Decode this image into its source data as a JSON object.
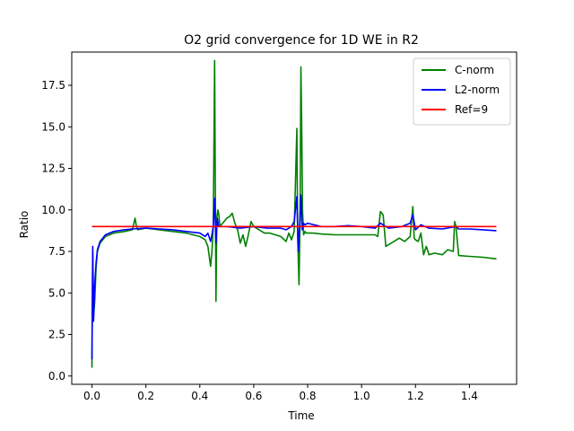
{
  "chart_data": {
    "type": "line",
    "title": "O2 grid convergence for 1D WE in R2",
    "xlabel": "Time",
    "ylabel": "Ratio",
    "xlim": [
      -0.075,
      1.575
    ],
    "ylim": [
      -0.5,
      19.5
    ],
    "xticks": [
      0.0,
      0.2,
      0.4,
      0.6,
      0.8,
      1.0,
      1.2,
      1.4
    ],
    "xtick_labels": [
      "0.0",
      "0.2",
      "0.4",
      "0.6",
      "0.8",
      "1.0",
      "1.2",
      "1.4"
    ],
    "yticks": [
      0.0,
      2.5,
      5.0,
      7.5,
      10.0,
      12.5,
      15.0,
      17.5
    ],
    "ytick_labels": [
      "0.0",
      "2.5",
      "5.0",
      "7.5",
      "10.0",
      "12.5",
      "15.0",
      "17.5"
    ],
    "grid": false,
    "legend_position": "top-right",
    "series": [
      {
        "name": "C-norm",
        "color": "#008000",
        "x": [
          0.0,
          0.003,
          0.006,
          0.01,
          0.015,
          0.02,
          0.03,
          0.05,
          0.08,
          0.12,
          0.15,
          0.16,
          0.165,
          0.17,
          0.2,
          0.25,
          0.3,
          0.35,
          0.4,
          0.42,
          0.43,
          0.44,
          0.445,
          0.45,
          0.455,
          0.46,
          0.463,
          0.467,
          0.47,
          0.475,
          0.48,
          0.49,
          0.5,
          0.51,
          0.52,
          0.53,
          0.54,
          0.55,
          0.56,
          0.57,
          0.58,
          0.59,
          0.6,
          0.61,
          0.62,
          0.64,
          0.66,
          0.68,
          0.7,
          0.72,
          0.73,
          0.74,
          0.75,
          0.76,
          0.763,
          0.768,
          0.772,
          0.775,
          0.778,
          0.781,
          0.785,
          0.79,
          0.795,
          0.8,
          0.82,
          0.85,
          0.9,
          0.95,
          1.0,
          1.05,
          1.06,
          1.07,
          1.08,
          1.09,
          1.1,
          1.12,
          1.14,
          1.16,
          1.18,
          1.19,
          1.195,
          1.2,
          1.21,
          1.22,
          1.23,
          1.24,
          1.25,
          1.27,
          1.3,
          1.32,
          1.34,
          1.345,
          1.35,
          1.36,
          1.4,
          1.45,
          1.5
        ],
        "values": [
          0.5,
          7.5,
          3.5,
          4.5,
          6.5,
          7.5,
          8.0,
          8.4,
          8.6,
          8.7,
          8.8,
          9.5,
          9.0,
          8.8,
          8.9,
          8.8,
          8.7,
          8.6,
          8.4,
          8.2,
          7.8,
          6.6,
          7.5,
          9.0,
          19.0,
          4.5,
          9.5,
          10.0,
          9.8,
          9.0,
          9.1,
          9.3,
          9.5,
          9.6,
          9.8,
          9.2,
          8.8,
          8.0,
          8.5,
          7.8,
          8.5,
          9.3,
          9.0,
          8.9,
          8.8,
          8.6,
          8.6,
          8.5,
          8.4,
          8.1,
          8.6,
          8.2,
          8.7,
          14.9,
          8.5,
          5.5,
          9.5,
          18.6,
          15.0,
          10.0,
          8.5,
          8.7,
          8.6,
          8.6,
          8.6,
          8.55,
          8.5,
          8.5,
          8.5,
          8.5,
          8.4,
          9.9,
          9.7,
          7.8,
          7.9,
          8.1,
          8.3,
          8.1,
          8.4,
          10.2,
          8.3,
          8.2,
          8.1,
          8.6,
          7.3,
          7.8,
          7.3,
          7.4,
          7.3,
          7.6,
          7.5,
          9.3,
          9.0,
          7.25,
          7.2,
          7.15,
          7.05
        ]
      },
      {
        "name": "L2-norm",
        "color": "#0000ff",
        "x": [
          0.0,
          0.003,
          0.006,
          0.01,
          0.015,
          0.02,
          0.03,
          0.05,
          0.08,
          0.12,
          0.15,
          0.2,
          0.25,
          0.3,
          0.35,
          0.4,
          0.42,
          0.43,
          0.44,
          0.445,
          0.45,
          0.455,
          0.46,
          0.465,
          0.47,
          0.48,
          0.5,
          0.55,
          0.6,
          0.65,
          0.7,
          0.72,
          0.74,
          0.75,
          0.76,
          0.765,
          0.77,
          0.775,
          0.78,
          0.785,
          0.79,
          0.8,
          0.85,
          0.9,
          0.95,
          1.0,
          1.05,
          1.07,
          1.1,
          1.15,
          1.18,
          1.19,
          1.2,
          1.22,
          1.25,
          1.3,
          1.35,
          1.36,
          1.4,
          1.45,
          1.5
        ],
        "values": [
          1.0,
          7.8,
          3.3,
          5.5,
          6.8,
          7.6,
          8.1,
          8.5,
          8.7,
          8.8,
          8.85,
          8.9,
          8.85,
          8.8,
          8.7,
          8.6,
          8.4,
          8.6,
          8.1,
          8.5,
          9.0,
          10.7,
          8.0,
          9.5,
          9.0,
          9.0,
          9.0,
          8.9,
          9.0,
          8.9,
          8.9,
          8.8,
          9.0,
          9.3,
          10.8,
          7.5,
          9.0,
          10.9,
          8.8,
          9.2,
          9.1,
          9.2,
          9.0,
          9.0,
          9.05,
          9.0,
          8.9,
          9.2,
          8.9,
          9.0,
          9.2,
          9.7,
          8.8,
          9.1,
          8.9,
          8.85,
          9.0,
          8.85,
          8.85,
          8.8,
          8.75
        ]
      },
      {
        "name": "Ref=9",
        "color": "#ff0000",
        "x": [
          0.0,
          1.5
        ],
        "values": [
          9.0,
          9.0
        ]
      }
    ]
  }
}
